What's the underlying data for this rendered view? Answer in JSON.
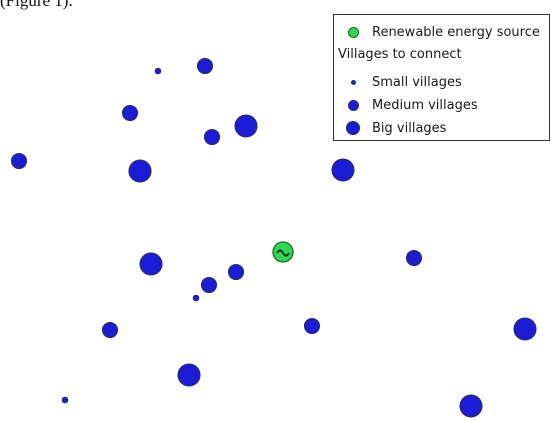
{
  "caption": "(Figure 1).",
  "legend": {
    "source_label": "Renewable energy source",
    "heading": "Villages to connect",
    "small_label": "Small villages",
    "medium_label": "Medium villages",
    "big_label": "Big villages"
  },
  "colors": {
    "village_fill": "#1c1cd6",
    "village_stroke": "#2c2c5e",
    "source_fill": "#33d655",
    "source_stroke": "#156b2a",
    "source_symbol": "#0f3a18"
  },
  "icons": {
    "source": "renewable-source-icon",
    "village": "village-dot-icon"
  }
}
